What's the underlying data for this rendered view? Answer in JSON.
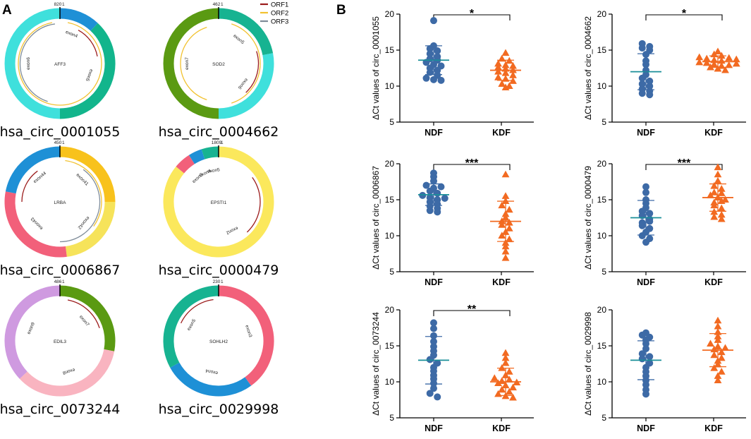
{
  "panel_a": {
    "letter": "A",
    "legend": [
      {
        "label": "ORF1",
        "color": "#9b1b1b"
      },
      {
        "label": "ORF2",
        "color": "#f2c230"
      },
      {
        "label": "ORF3",
        "color": "#7f8c99"
      }
    ],
    "circles": [
      {
        "name": "hsa_circ_0001055",
        "gene": "AFF3",
        "length": "820",
        "segments": [
          {
            "frac": 0.12,
            "color": "#1e90d6"
          },
          {
            "frac": 0.38,
            "color": "#12b58c"
          },
          {
            "frac": 0.5,
            "color": "#3fe0dc"
          }
        ],
        "exons": [
          "exon4",
          "exon5",
          "exon6"
        ],
        "orfs": [
          {
            "start": 0.03,
            "end": 0.97,
            "color": "#f2c230"
          },
          {
            "start": 0.55,
            "end": 0.98,
            "color": "#7f8c99"
          },
          {
            "start": 0.08,
            "end": 0.22,
            "color": "#9b1b1b"
          }
        ]
      },
      {
        "name": "hsa_circ_0004662",
        "gene": "SOD2",
        "length": "462",
        "segments": [
          {
            "frac": 0.22,
            "color": "#17b391"
          },
          {
            "frac": 0.28,
            "color": "#3fe0dc"
          },
          {
            "frac": 0.5,
            "color": "#5a9a12"
          }
        ],
        "exons": [
          "exon5",
          "exon6",
          "exon7"
        ],
        "orfs": [
          {
            "start": 0.05,
            "end": 0.45,
            "color": "#f2c230"
          },
          {
            "start": 0.2,
            "end": 0.38,
            "color": "#9b1b1b"
          },
          {
            "start": 0.55,
            "end": 0.95,
            "color": "#f2c230"
          }
        ]
      },
      {
        "name": "hsa_circ_0006867",
        "gene": "LRBA",
        "length": "450",
        "segments": [
          {
            "frac": 0.25,
            "color": "#f8c21c"
          },
          {
            "frac": 0.23,
            "color": "#f6e35a"
          },
          {
            "frac": 0.3,
            "color": "#f2607a"
          },
          {
            "frac": 0.22,
            "color": "#1e90d6"
          }
        ],
        "exons": [
          "exon41",
          "exon42",
          "exon43",
          "exon44"
        ],
        "orfs": [
          {
            "start": 0.02,
            "end": 0.35,
            "color": "#f2c230"
          },
          {
            "start": 0.1,
            "end": 0.5,
            "color": "#7f8c99"
          },
          {
            "start": 0.75,
            "end": 0.9,
            "color": "#9b1b1b"
          }
        ]
      },
      {
        "name": "hsa_circ_0000479",
        "gene": "EPSTI1",
        "length": "1809",
        "segments": [
          {
            "frac": 0.86,
            "color": "#fbe85c"
          },
          {
            "frac": 0.05,
            "color": "#f2607a"
          },
          {
            "frac": 0.04,
            "color": "#1e90d6"
          },
          {
            "frac": 0.05,
            "color": "#17b391"
          }
        ],
        "exons": [
          "exon2",
          "exon3",
          "exon4",
          "exon5"
        ],
        "orfs": [
          {
            "start": 0.15,
            "end": 0.38,
            "color": "#9b1b1b"
          }
        ]
      },
      {
        "name": "hsa_circ_0073244",
        "gene": "EDIL3",
        "length": "486",
        "segments": [
          {
            "frac": 0.28,
            "color": "#5a9a12"
          },
          {
            "frac": 0.35,
            "color": "#f9b4c0"
          },
          {
            "frac": 0.37,
            "color": "#cf9ae0"
          }
        ],
        "exons": [
          "exon7",
          "exon8",
          "exon9"
        ],
        "orfs": [
          {
            "start": 0.03,
            "end": 0.2,
            "color": "#9b1b1b"
          }
        ]
      },
      {
        "name": "hsa_circ_0029998",
        "gene": "SOHLH2",
        "length": "230",
        "segments": [
          {
            "frac": 0.4,
            "color": "#f2607a"
          },
          {
            "frac": 0.27,
            "color": "#1e90d6"
          },
          {
            "frac": 0.33,
            "color": "#17b391"
          }
        ],
        "exons": [
          "exon3",
          "exon4",
          "exon5"
        ],
        "orfs": [
          {
            "start": 0.82,
            "end": 0.98,
            "color": "#9b1b1b"
          }
        ]
      }
    ]
  },
  "panel_b": {
    "letter": "B"
  },
  "chart_data": [
    {
      "type": "scatter",
      "ylabel": "ΔCt values of circ_0001055",
      "ylim": [
        5,
        20
      ],
      "yticks": [
        5,
        10,
        15,
        20
      ],
      "categories": [
        "NDF",
        "KDF"
      ],
      "significance": "*",
      "series": [
        {
          "name": "NDF",
          "color": "#3d6aa6",
          "marker": "circle",
          "mean": 13.6,
          "sd": 2.0,
          "values": [
            19.1,
            15.6,
            15.2,
            14.9,
            14.5,
            14.1,
            13.8,
            13.6,
            13.3,
            13.0,
            12.8,
            12.5,
            12.2,
            11.9,
            11.5,
            11.1,
            10.9,
            10.8
          ]
        },
        {
          "name": "KDF",
          "color": "#f26a21",
          "marker": "triangle",
          "mean": 12.2,
          "sd": 1.4,
          "values": [
            14.6,
            13.8,
            13.5,
            13.1,
            12.9,
            12.6,
            12.4,
            12.2,
            12.0,
            11.8,
            11.5,
            11.2,
            11.0,
            10.7,
            10.3,
            10.0,
            9.8,
            12.8
          ]
        }
      ]
    },
    {
      "type": "scatter",
      "ylabel": "ΔCt values of circ_0004662",
      "ylim": [
        5,
        20
      ],
      "yticks": [
        5,
        10,
        15,
        20
      ],
      "categories": [
        "NDF",
        "KDF"
      ],
      "significance": "*",
      "series": [
        {
          "name": "NDF",
          "color": "#3d6aa6",
          "marker": "circle",
          "mean": 12.0,
          "sd": 2.5,
          "values": [
            15.9,
            15.5,
            15.3,
            15.0,
            14.4,
            13.5,
            13.0,
            12.2,
            11.6,
            11.1,
            10.7,
            10.3,
            10.0,
            9.6,
            9.3,
            9.0,
            8.8
          ]
        },
        {
          "name": "KDF",
          "color": "#f26a21",
          "marker": "triangle",
          "mean": 13.4,
          "sd": 0.8,
          "values": [
            14.8,
            14.4,
            14.2,
            14.0,
            13.8,
            13.6,
            13.5,
            13.3,
            13.2,
            13.0,
            12.8,
            12.6,
            12.4,
            12.2,
            13.9,
            13.7,
            12.9,
            13.1
          ]
        }
      ]
    },
    {
      "type": "scatter",
      "ylabel": "ΔCt values of circ_0006867",
      "ylim": [
        5,
        20
      ],
      "yticks": [
        5,
        10,
        15,
        20
      ],
      "categories": [
        "NDF",
        "KDF"
      ],
      "significance": "***",
      "series": [
        {
          "name": "NDF",
          "color": "#3d6aa6",
          "marker": "circle",
          "mean": 15.7,
          "sd": 1.5,
          "values": [
            18.7,
            18.2,
            17.6,
            17.0,
            16.6,
            16.2,
            15.9,
            15.6,
            15.3,
            15.0,
            14.7,
            14.4,
            14.1,
            13.8,
            13.5,
            13.3,
            16.8,
            15.2
          ]
        },
        {
          "name": "KDF",
          "color": "#f26a21",
          "marker": "triangle",
          "mean": 12.0,
          "sd": 2.8,
          "values": [
            18.5,
            15.5,
            14.8,
            14.2,
            13.6,
            13.0,
            12.5,
            12.0,
            11.5,
            11.0,
            10.5,
            10.0,
            9.5,
            9.0,
            8.5,
            7.8,
            6.9,
            11.8
          ]
        }
      ]
    },
    {
      "type": "scatter",
      "ylabel": "ΔCt values of circ_0000479",
      "ylim": [
        5,
        20
      ],
      "yticks": [
        5,
        10,
        15,
        20
      ],
      "categories": [
        "NDF",
        "KDF"
      ],
      "significance": "***",
      "series": [
        {
          "name": "NDF",
          "color": "#3d6aa6",
          "marker": "circle",
          "mean": 12.5,
          "sd": 2.4,
          "values": [
            16.8,
            16.0,
            15.0,
            14.5,
            13.9,
            13.4,
            12.8,
            12.3,
            11.8,
            11.4,
            11.0,
            10.5,
            10.0,
            9.6,
            9.1,
            13.1,
            12.0
          ]
        },
        {
          "name": "KDF",
          "color": "#f26a21",
          "marker": "triangle",
          "mean": 15.3,
          "sd": 1.9,
          "values": [
            19.5,
            18.5,
            17.6,
            16.9,
            16.5,
            16.0,
            15.6,
            15.3,
            15.0,
            14.6,
            14.2,
            13.8,
            13.3,
            12.9,
            12.6,
            12.3,
            15.9,
            14.8
          ]
        }
      ]
    },
    {
      "type": "scatter",
      "ylabel": "ΔCt values of circ_0073244",
      "ylim": [
        5,
        20
      ],
      "yticks": [
        5,
        10,
        15,
        20
      ],
      "categories": [
        "NDF",
        "KDF"
      ],
      "significance": "**",
      "series": [
        {
          "name": "NDF",
          "color": "#3d6aa6",
          "marker": "circle",
          "mean": 13.0,
          "sd": 3.3,
          "values": [
            18.2,
            17.4,
            16.4,
            15.6,
            14.9,
            14.3,
            13.7,
            13.1,
            12.6,
            12.0,
            11.5,
            10.9,
            10.4,
            9.8,
            9.1,
            8.4,
            7.9
          ]
        },
        {
          "name": "KDF",
          "color": "#f26a21",
          "marker": "triangle",
          "mean": 10.0,
          "sd": 1.9,
          "values": [
            14.0,
            13.3,
            12.6,
            11.9,
            11.4,
            10.9,
            10.5,
            10.1,
            9.8,
            9.5,
            9.2,
            8.9,
            8.6,
            8.3,
            8.0,
            7.8,
            10.3,
            9.9
          ]
        }
      ]
    },
    {
      "type": "scatter",
      "ylabel": "ΔCt values of circ_0029998",
      "ylim": [
        5,
        20
      ],
      "yticks": [
        5,
        10,
        15,
        20
      ],
      "categories": [
        "NDF",
        "KDF"
      ],
      "significance": "",
      "series": [
        {
          "name": "NDF",
          "color": "#3d6aa6",
          "marker": "circle",
          "mean": 13.0,
          "sd": 2.7,
          "values": [
            16.8,
            16.5,
            16.2,
            15.8,
            15.3,
            14.6,
            13.9,
            13.2,
            12.6,
            12.0,
            11.4,
            10.8,
            10.2,
            9.6,
            8.9,
            8.3,
            13.5
          ]
        },
        {
          "name": "KDF",
          "color": "#f26a21",
          "marker": "triangle",
          "mean": 14.4,
          "sd": 2.3,
          "values": [
            18.5,
            17.7,
            16.9,
            16.3,
            15.8,
            15.3,
            14.9,
            14.5,
            14.1,
            13.7,
            13.3,
            12.9,
            12.4,
            11.9,
            11.4,
            10.8,
            10.2,
            14.7
          ]
        }
      ]
    }
  ]
}
